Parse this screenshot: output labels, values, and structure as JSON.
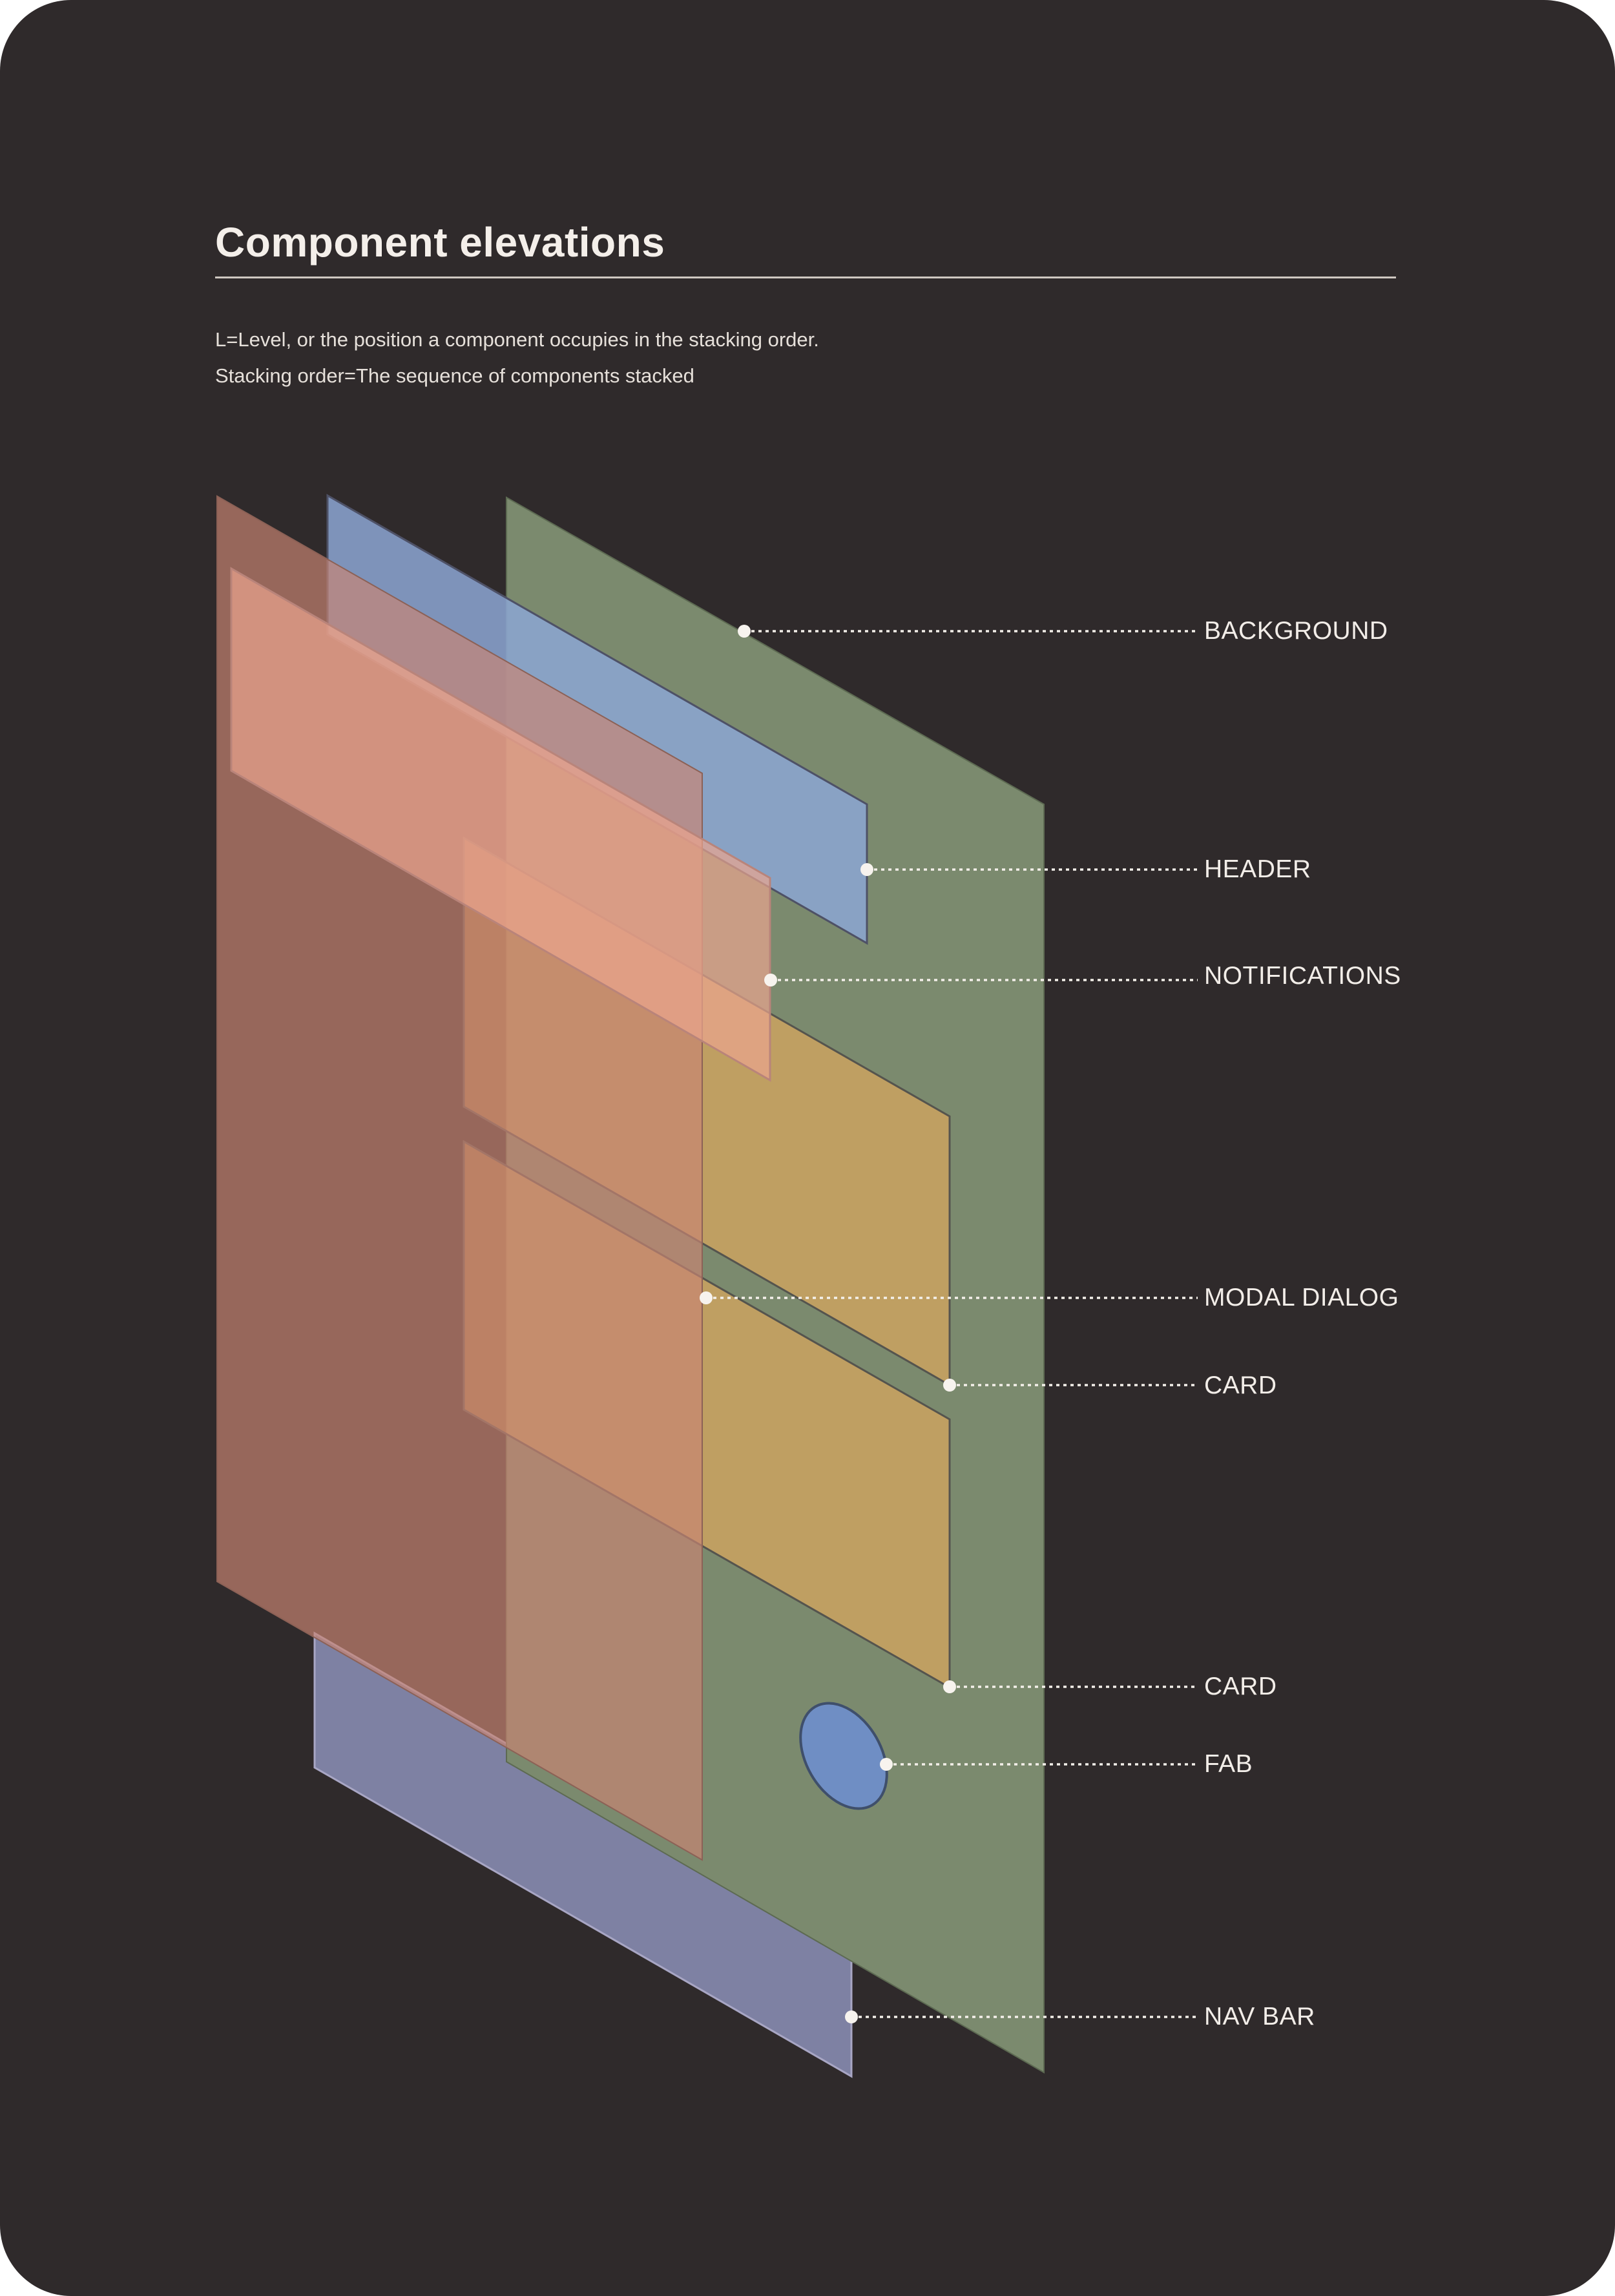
{
  "page": {
    "title": "Component elevations",
    "descriptions": [
      "L=Level, or the position a component occupies in the stacking order.",
      "Stacking order=The sequence of components stacked"
    ]
  },
  "layers": {
    "background": "BACKGROUND",
    "header": "HEADER",
    "notifications": "NOTIFICATIONS",
    "modal_dialog": "MODAL DIALOG",
    "card_1": "CARD",
    "card_2": "CARD",
    "fab": "FAB",
    "nav_bar": "NAV BAR"
  },
  "colors": {
    "page_background": "#2f2a2b",
    "background_layer": "#7b8a6e",
    "header_layer": "#7f96be",
    "notifications_layer": "#e6a58a",
    "modal_dialog_layer": "#d8b79b",
    "card_layer": "#e8ad6e",
    "fab_layer": "#6f8ec4",
    "nav_bar_layer": "#8c90b8",
    "back_sheet": "#b27669",
    "leader_line": "#f4f0ea"
  }
}
